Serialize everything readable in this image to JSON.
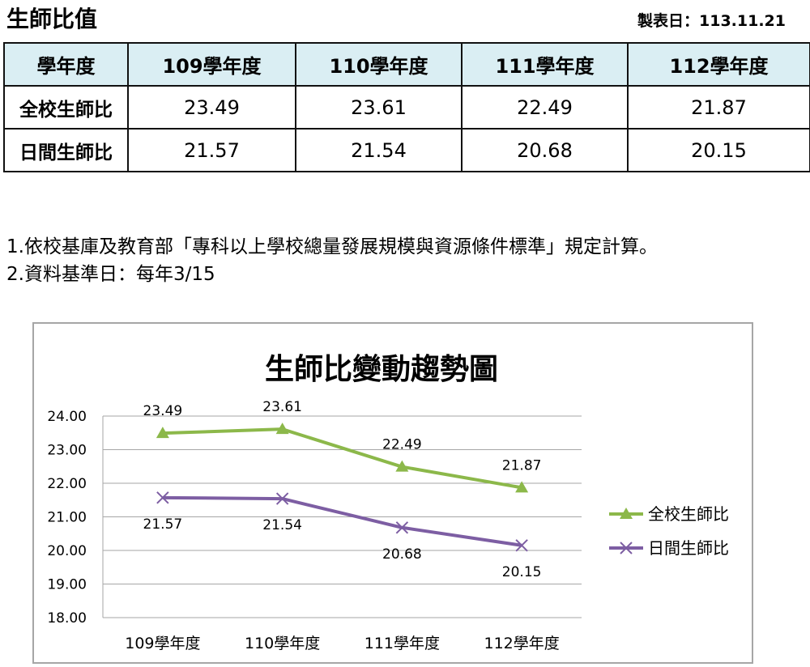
{
  "header": {
    "title": "生師比值",
    "date_label": "製表日：113.11.21"
  },
  "table": {
    "headers": [
      "學年度",
      "109學年度",
      "110學年度",
      "111學年度",
      "112學年度"
    ],
    "rows": [
      {
        "label": "全校生師比",
        "values": [
          "23.49",
          "23.61",
          "22.49",
          "21.87"
        ]
      },
      {
        "label": "日間生師比",
        "values": [
          "21.57",
          "21.54",
          "20.68",
          "20.15"
        ]
      }
    ]
  },
  "notes": [
    "1.依校基庫及教育部「專科以上學校總量發展規模與資源條件標準」規定計算。",
    "2.資料基準日：每年3/15"
  ],
  "chart_data": {
    "type": "line",
    "title": "生師比變動趨勢圖",
    "categories": [
      "109學年度",
      "110學年度",
      "111學年度",
      "112學年度"
    ],
    "ylim": [
      18.0,
      24.0
    ],
    "yticks": [
      "24.00",
      "23.00",
      "22.00",
      "21.00",
      "20.00",
      "19.00",
      "18.00"
    ],
    "grid": true,
    "legend_position": "right",
    "series": [
      {
        "name": "全校生師比",
        "values": [
          23.49,
          23.61,
          22.49,
          21.87
        ],
        "labels": [
          "23.49",
          "23.61",
          "22.49",
          "21.87"
        ],
        "color": "#8cb84a",
        "marker": "triangle"
      },
      {
        "name": "日間生師比",
        "values": [
          21.57,
          21.54,
          20.68,
          20.15
        ],
        "labels": [
          "21.57",
          "21.54",
          "20.68",
          "20.15"
        ],
        "color": "#7d5ea3",
        "marker": "x"
      }
    ]
  }
}
